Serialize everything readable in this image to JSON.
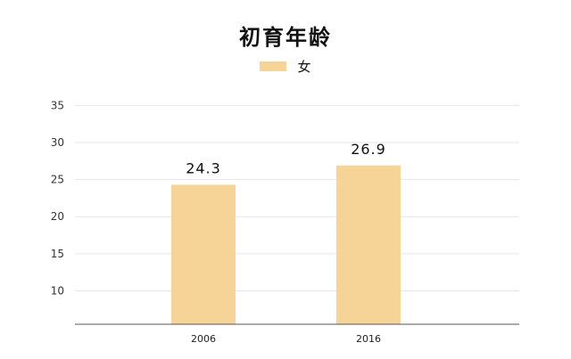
{
  "chart_data": {
    "type": "bar",
    "title": "初育年龄",
    "categories": [
      "2006",
      "2016"
    ],
    "series": [
      {
        "name": "女",
        "values": [
          24.3,
          26.9
        ],
        "data_labels": [
          "24.3",
          "26.9"
        ]
      }
    ],
    "yticks": [
      10,
      15,
      20,
      25,
      30,
      35
    ],
    "ylim": [
      5.5,
      36
    ],
    "xlabel": "",
    "ylabel": "",
    "grid": true,
    "legend": "top-center",
    "bar_color": "#f6d396",
    "grid_color": "#e6e6e6",
    "axis_color": "#555555"
  }
}
